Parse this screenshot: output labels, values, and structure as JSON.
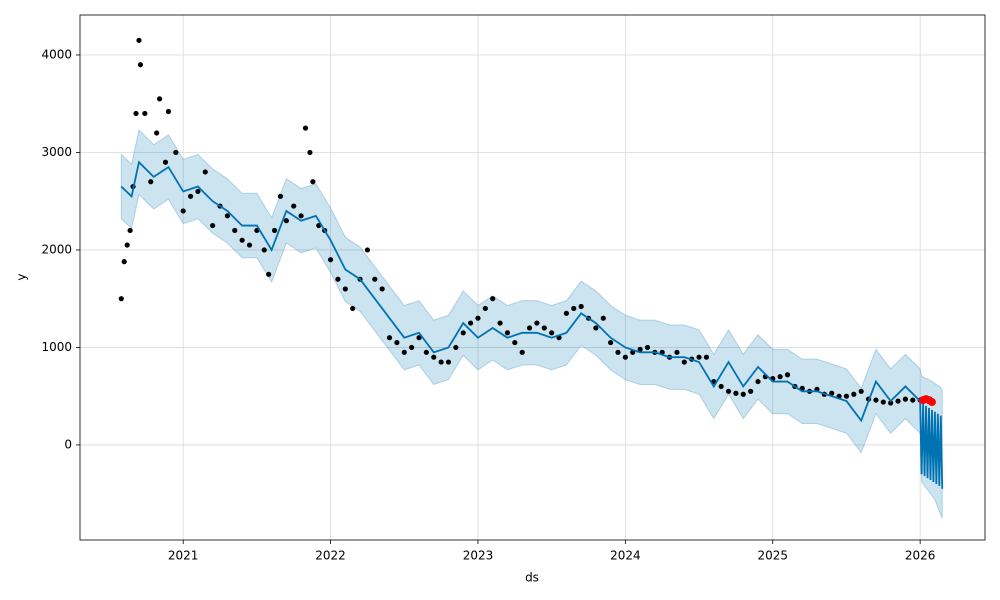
{
  "chart_data": {
    "type": "forecast",
    "xlabel": "ds",
    "ylabel": "y",
    "xlim": [
      2020.3,
      2026.44
    ],
    "ylim": [
      -975,
      4410
    ],
    "xticks": [
      2021,
      2022,
      2023,
      2024,
      2025,
      2026
    ],
    "yticks": [
      0,
      1000,
      2000,
      3000,
      4000
    ],
    "grid": true,
    "observed": {
      "color": "#000000",
      "x": [
        2020.58,
        2020.6,
        2020.62,
        2020.64,
        2020.66,
        2020.68,
        2020.7,
        2020.71,
        2020.74,
        2020.78,
        2020.82,
        2020.84,
        2020.88,
        2020.9,
        2020.95,
        2021.0,
        2021.05,
        2021.1,
        2021.15,
        2021.2,
        2021.25,
        2021.3,
        2021.35,
        2021.4,
        2021.45,
        2021.5,
        2021.55,
        2021.58,
        2021.62,
        2021.66,
        2021.7,
        2021.75,
        2021.8,
        2021.83,
        2021.86,
        2021.88,
        2021.92,
        2021.96,
        2022.0,
        2022.05,
        2022.1,
        2022.15,
        2022.2,
        2022.25,
        2022.3,
        2022.35,
        2022.4,
        2022.45,
        2022.5,
        2022.55,
        2022.6,
        2022.65,
        2022.7,
        2022.75,
        2022.8,
        2022.85,
        2022.9,
        2022.95,
        2023.0,
        2023.05,
        2023.1,
        2023.15,
        2023.2,
        2023.25,
        2023.3,
        2023.35,
        2023.4,
        2023.45,
        2023.5,
        2023.55,
        2023.6,
        2023.65,
        2023.7,
        2023.75,
        2023.8,
        2023.85,
        2023.9,
        2023.95,
        2024.0,
        2024.05,
        2024.1,
        2024.15,
        2024.2,
        2024.25,
        2024.3,
        2024.35,
        2024.4,
        2024.45,
        2024.5,
        2024.55,
        2024.6,
        2024.65,
        2024.7,
        2024.75,
        2024.8,
        2024.85,
        2024.9,
        2024.95,
        2025.0,
        2025.05,
        2025.1,
        2025.15,
        2025.2,
        2025.25,
        2025.3,
        2025.35,
        2025.4,
        2025.45,
        2025.5,
        2025.55,
        2025.6,
        2025.65,
        2025.7,
        2025.75,
        2025.8,
        2025.85,
        2025.9,
        2025.95,
        2026.0
      ],
      "y": [
        1500,
        1880,
        2050,
        2200,
        2650,
        3400,
        4150,
        3900,
        3400,
        2700,
        3200,
        3550,
        2900,
        3420,
        3000,
        2400,
        2550,
        2600,
        2800,
        2250,
        2450,
        2350,
        2200,
        2100,
        2050,
        2200,
        2000,
        1750,
        2200,
        2550,
        2300,
        2450,
        2350,
        3250,
        3000,
        2700,
        2250,
        2200,
        1900,
        1700,
        1600,
        1400,
        1700,
        2000,
        1700,
        1600,
        1100,
        1050,
        950,
        1000,
        1100,
        950,
        900,
        850,
        850,
        1000,
        1150,
        1250,
        1300,
        1400,
        1500,
        1250,
        1150,
        1050,
        950,
        1200,
        1250,
        1200,
        1150,
        1100,
        1350,
        1400,
        1420,
        1300,
        1200,
        1300,
        1050,
        950,
        900,
        950,
        980,
        1000,
        950,
        950,
        900,
        950,
        850,
        880,
        900,
        900,
        650,
        600,
        550,
        530,
        520,
        550,
        650,
        700,
        680,
        700,
        720,
        600,
        580,
        550,
        570,
        520,
        530,
        500,
        500,
        520,
        550,
        470,
        460,
        440,
        430,
        450,
        470,
        460,
        460
      ]
    },
    "forecast": {
      "color": "#0072b2",
      "band_color": "#0072b2",
      "x": [
        2020.58,
        2020.65,
        2020.7,
        2020.8,
        2020.9,
        2021.0,
        2021.1,
        2021.2,
        2021.3,
        2021.4,
        2021.5,
        2021.6,
        2021.7,
        2021.8,
        2021.9,
        2022.0,
        2022.1,
        2022.2,
        2022.3,
        2022.4,
        2022.5,
        2022.6,
        2022.7,
        2022.8,
        2022.9,
        2023.0,
        2023.1,
        2023.2,
        2023.3,
        2023.4,
        2023.5,
        2023.6,
        2023.7,
        2023.8,
        2023.9,
        2024.0,
        2024.1,
        2024.2,
        2024.3,
        2024.4,
        2024.5,
        2024.6,
        2024.7,
        2024.8,
        2024.9,
        2025.0,
        2025.1,
        2025.2,
        2025.3,
        2025.4,
        2025.5,
        2025.6,
        2025.7,
        2025.8,
        2025.9,
        2026.0,
        2026.01,
        2026.02,
        2026.03,
        2026.04,
        2026.05,
        2026.06,
        2026.07,
        2026.08,
        2026.09,
        2026.1,
        2026.11,
        2026.12,
        2026.13,
        2026.14,
        2026.15
      ],
      "yhat": [
        2650,
        2550,
        2900,
        2750,
        2850,
        2600,
        2650,
        2500,
        2400,
        2250,
        2250,
        2000,
        2400,
        2300,
        2350,
        2100,
        1800,
        1700,
        1500,
        1300,
        1100,
        1150,
        950,
        1000,
        1250,
        1100,
        1200,
        1100,
        1150,
        1150,
        1100,
        1150,
        1350,
        1250,
        1100,
        1000,
        950,
        950,
        900,
        900,
        850,
        600,
        850,
        600,
        800,
        650,
        650,
        550,
        550,
        500,
        450,
        250,
        650,
        450,
        600,
        450,
        -300,
        420,
        -320,
        400,
        -340,
        380,
        -360,
        360,
        -380,
        340,
        -400,
        320,
        -420,
        300,
        -450
      ],
      "lower": [
        2320,
        2220,
        2570,
        2420,
        2520,
        2270,
        2320,
        2170,
        2070,
        1920,
        1920,
        1670,
        2070,
        1970,
        2020,
        1770,
        1470,
        1370,
        1170,
        970,
        770,
        820,
        620,
        670,
        920,
        770,
        870,
        770,
        820,
        820,
        770,
        820,
        1020,
        920,
        770,
        670,
        620,
        620,
        570,
        570,
        520,
        270,
        520,
        270,
        470,
        320,
        320,
        220,
        220,
        170,
        120,
        -80,
        320,
        120,
        270,
        120,
        -380,
        -400,
        -420,
        -440,
        -460,
        -480,
        -500,
        -520,
        -540,
        -560,
        -600,
        -640,
        -680,
        -720,
        -750
      ],
      "upper": [
        2980,
        2880,
        3230,
        3080,
        3180,
        2930,
        2980,
        2830,
        2730,
        2580,
        2580,
        2330,
        2730,
        2630,
        2680,
        2430,
        2130,
        2030,
        1830,
        1630,
        1430,
        1480,
        1280,
        1330,
        1580,
        1430,
        1530,
        1430,
        1480,
        1480,
        1430,
        1480,
        1680,
        1580,
        1430,
        1330,
        1280,
        1280,
        1230,
        1230,
        1180,
        930,
        1180,
        930,
        1130,
        980,
        980,
        880,
        880,
        830,
        780,
        580,
        980,
        780,
        930,
        780,
        700,
        700,
        690,
        680,
        680,
        670,
        660,
        650,
        640,
        630,
        620,
        610,
        600,
        590,
        560
      ]
    },
    "highlight": {
      "color": "#ff0000",
      "x": [
        2026.02,
        2026.04,
        2026.06,
        2026.08
      ],
      "y": [
        460,
        470,
        460,
        440
      ]
    }
  }
}
